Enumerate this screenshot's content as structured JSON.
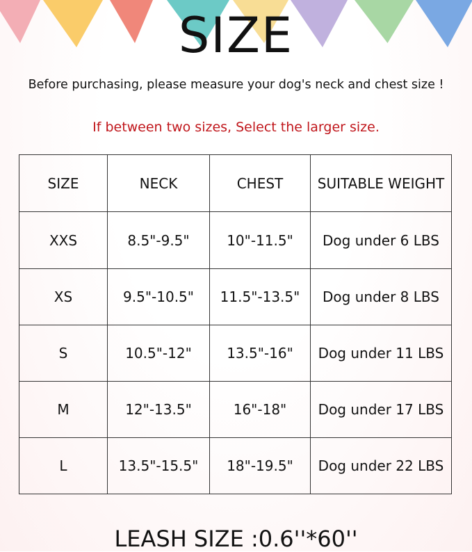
{
  "title": "SIZE",
  "subtitle": "Before purchasing, please measure your dog's neck and chest size !",
  "note": "If between two sizes, Select the larger size.",
  "note_color": "#c0161b",
  "bunting_colors": [
    "#f2a5ad",
    "#f9c75a",
    "#ee7a6c",
    "#5cc4c0",
    "#f7d98a",
    "#b9a9da",
    "#9fd39a",
    "#6c9ee0"
  ],
  "table": {
    "headers": [
      "SIZE",
      "NECK",
      "CHEST",
      "SUITABLE WEIGHT"
    ],
    "rows": [
      [
        "XXS",
        "8.5\"-9.5\"",
        "10\"-11.5\"",
        "Dog under 6 LBS"
      ],
      [
        "XS",
        "9.5\"-10.5\"",
        "11.5\"-13.5\"",
        "Dog under 8 LBS"
      ],
      [
        "S",
        "10.5\"-12\"",
        "13.5\"-16\"",
        "Dog under 11 LBS"
      ],
      [
        "M",
        "12\"-13.5\"",
        "16\"-18\"",
        "Dog under 17 LBS"
      ],
      [
        "L",
        "13.5\"-15.5\"",
        "18\"-19.5\"",
        "Dog under 22 LBS"
      ]
    ]
  },
  "leash": "LEASH SIZE :0.6''*60''"
}
